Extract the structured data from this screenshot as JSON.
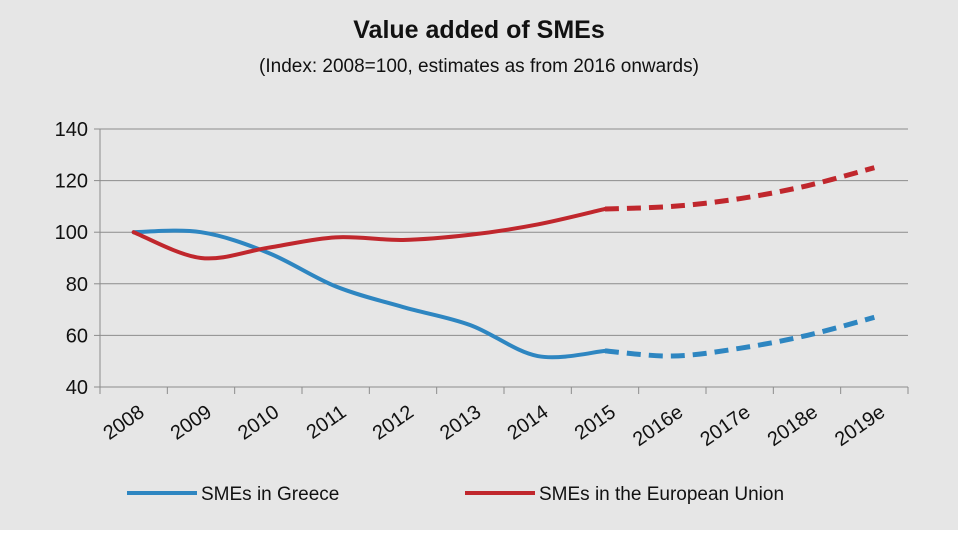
{
  "chart_data": {
    "type": "line",
    "title": "Value added of SMEs",
    "subtitle": "(Index: 2008=100, estimates as from 2016 onwards)",
    "categories": [
      "2008",
      "2009",
      "2010",
      "2011",
      "2012",
      "2013",
      "2014",
      "2015",
      "2016e",
      "2017e",
      "2018e",
      "2019e"
    ],
    "estimates_from_index": 7,
    "ylim": [
      40,
      140
    ],
    "yticks": [
      40,
      60,
      80,
      100,
      120,
      140
    ],
    "grid": true,
    "legend_position": "bottom",
    "series": [
      {
        "name": "SMEs in Greece",
        "color": "#2e86c1",
        "values": [
          100,
          100,
          92,
          79,
          71,
          64,
          52,
          54,
          52,
          55,
          60,
          67
        ]
      },
      {
        "name": "SMEs in the European Union",
        "color": "#c0272d",
        "values": [
          100,
          90,
          94,
          98,
          97,
          99,
          103,
          109,
          110,
          113,
          118,
          125
        ]
      }
    ]
  }
}
